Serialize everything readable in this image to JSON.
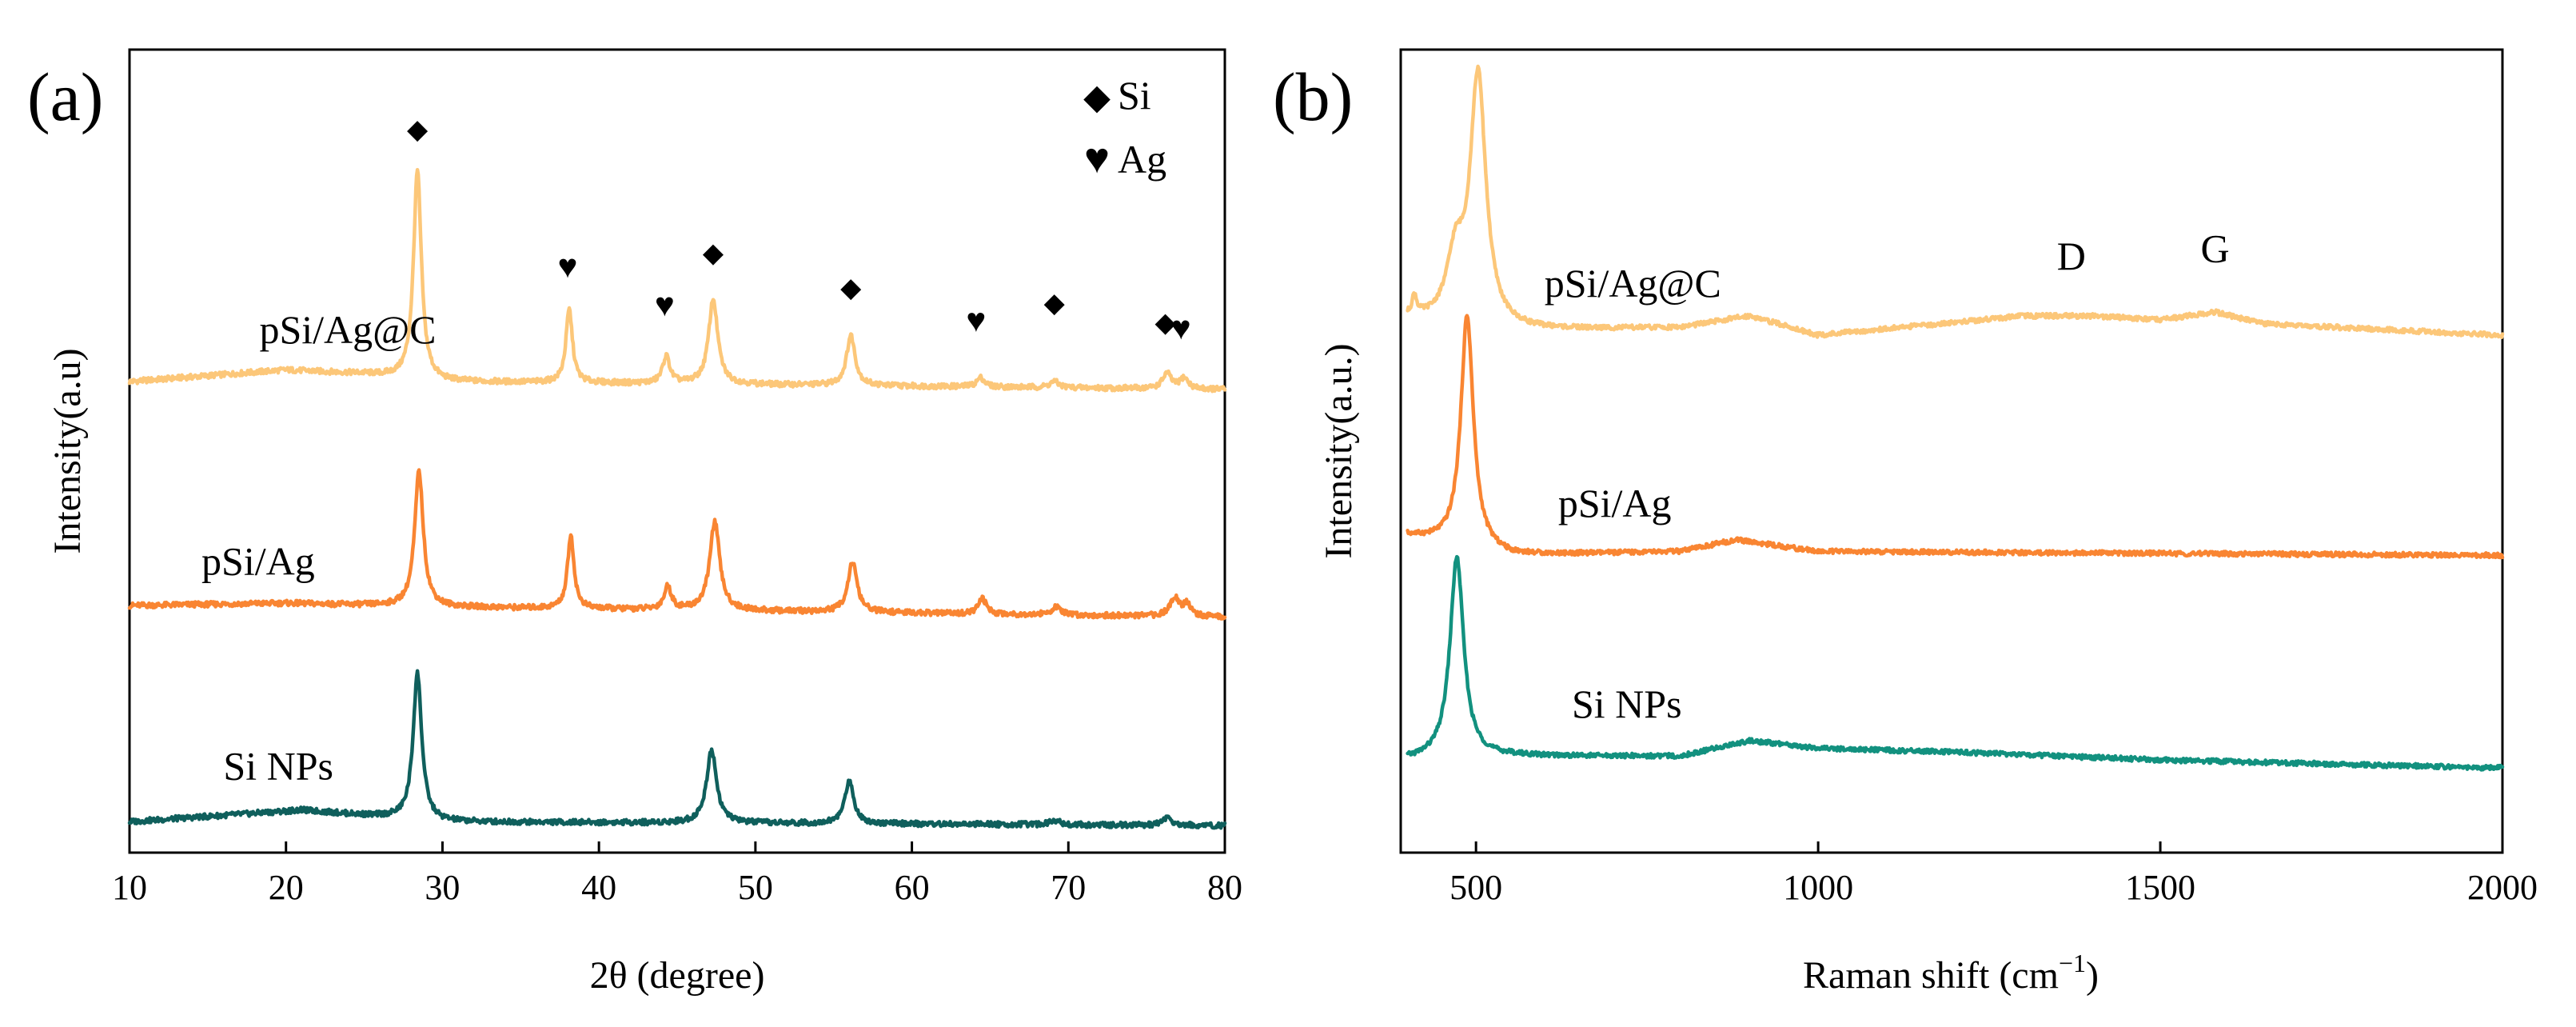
{
  "chart_data": [
    {
      "panel_label": "(a)",
      "type": "line",
      "title": "",
      "xlabel": "2θ (degree)",
      "ylabel": "Intensity(a.u)",
      "xlim": [
        10,
        80
      ],
      "ylim": [
        0,
        10.4
      ],
      "xticks": [
        10,
        20,
        30,
        40,
        50,
        60,
        70,
        80
      ],
      "xtick_labels": [
        "10",
        "20",
        "30",
        "40",
        "50",
        "60",
        "70",
        "80"
      ],
      "grid": false,
      "legend": {
        "placement": "top-right",
        "items": [
          {
            "symbol": "◆",
            "label": "Si",
            "color": "#000000"
          },
          {
            "symbol": "♥",
            "label": "Ag",
            "color": "#7a7a10"
          }
        ]
      },
      "series": [
        {
          "name": "pSi/Ag@C",
          "color": "#fcc779",
          "label_x": 18.3,
          "label_y": 6.6,
          "baseline": [
            [
              10,
              6.1
            ],
            [
              20,
              6.25
            ],
            [
              25,
              6.2
            ],
            [
              30,
              6.1
            ],
            [
              80,
              6.0
            ]
          ],
          "peaks": [
            [
              28.4,
              2.7,
              0.3
            ],
            [
              38.1,
              0.95,
              0.25
            ],
            [
              44.3,
              0.35,
              0.28
            ],
            [
              47.3,
              1.1,
              0.35
            ],
            [
              56.1,
              0.65,
              0.33
            ],
            [
              64.4,
              0.12,
              0.3
            ],
            [
              69.1,
              0.08,
              0.35
            ],
            [
              76.3,
              0.2,
              0.33
            ],
            [
              77.4,
              0.14,
              0.3
            ]
          ]
        },
        {
          "name": "pSi/Ag",
          "color": "#f98532",
          "label_x": 14.6,
          "label_y": 3.6,
          "baseline": [
            [
              10,
              3.2
            ],
            [
              20,
              3.23
            ],
            [
              30,
              3.18
            ],
            [
              80,
              3.05
            ]
          ],
          "peaks": [
            [
              28.5,
              1.75,
              0.33
            ],
            [
              38.2,
              0.95,
              0.25
            ],
            [
              44.4,
              0.3,
              0.28
            ],
            [
              47.4,
              1.15,
              0.38
            ],
            [
              56.2,
              0.65,
              0.35
            ],
            [
              64.5,
              0.2,
              0.3
            ],
            [
              69.2,
              0.1,
              0.35
            ],
            [
              76.8,
              0.25,
              0.35
            ],
            [
              77.6,
              0.15,
              0.3
            ]
          ]
        },
        {
          "name": "Si NPs",
          "color": "#0f5f5c",
          "label_x": 16.0,
          "label_y": 0.95,
          "baseline": [
            [
              10,
              0.4
            ],
            [
              21,
              0.55
            ],
            [
              30,
              0.4
            ],
            [
              80,
              0.35
            ]
          ],
          "peaks": [
            [
              28.4,
              1.9,
              0.33
            ],
            [
              47.2,
              0.95,
              0.38
            ],
            [
              56.0,
              0.55,
              0.35
            ],
            [
              69.1,
              0.06,
              0.4
            ],
            [
              76.3,
              0.1,
              0.35
            ]
          ]
        }
      ],
      "annotations": [
        {
          "symbol": "◆",
          "kind": "Si",
          "x": 28.4,
          "y": 9.25
        },
        {
          "symbol": "♥",
          "kind": "Ag",
          "x": 38.0,
          "y": 7.45
        },
        {
          "symbol": "♥",
          "kind": "Ag",
          "x": 44.2,
          "y": 6.95
        },
        {
          "symbol": "◆",
          "kind": "Si",
          "x": 47.3,
          "y": 7.65
        },
        {
          "symbol": "◆",
          "kind": "Si",
          "x": 56.1,
          "y": 7.2
        },
        {
          "symbol": "♥",
          "kind": "Ag",
          "x": 64.1,
          "y": 6.75
        },
        {
          "symbol": "◆",
          "kind": "Si",
          "x": 69.1,
          "y": 7.0
        },
        {
          "symbol": "◆",
          "kind": "Si",
          "x": 76.2,
          "y": 6.75
        },
        {
          "symbol": "♥",
          "kind": "Ag",
          "x": 77.2,
          "y": 6.65
        }
      ]
    },
    {
      "panel_label": "(b)",
      "type": "line",
      "title": "",
      "xlabel": "Raman shift (cm",
      "xlabel_sup": "−1",
      "xlabel_end": ")",
      "ylabel": "Intensity(a.u.)",
      "xlim": [
        390,
        2000
      ],
      "ylim": [
        0,
        10.4
      ],
      "xticks": [
        500,
        1000,
        1500,
        2000
      ],
      "xtick_labels": [
        "500",
        "1000",
        "1500",
        "2000"
      ],
      "grid": false,
      "series": [
        {
          "name": "pSi/Ag@C",
          "color": "#fcc779",
          "label_x": 600,
          "label_y": 7.2,
          "x_start": 400,
          "baseline": [
            [
              400,
              6.9
            ],
            [
              520,
              6.75
            ],
            [
              800,
              6.8
            ],
            [
              900,
              6.95
            ],
            [
              1000,
              6.7
            ],
            [
              1300,
              6.95
            ],
            [
              1400,
              6.95
            ],
            [
              1500,
              6.9
            ],
            [
              1580,
              7.0
            ],
            [
              1650,
              6.85
            ],
            [
              2000,
              6.7
            ]
          ],
          "peaks": [
            [
              503,
              3.25,
              14
            ],
            [
              470,
              0.8,
              15
            ],
            [
              410,
              0.25,
              4
            ]
          ]
        },
        {
          "name": "pSi/Ag",
          "color": "#f98532",
          "label_x": 620,
          "label_y": 4.35,
          "x_start": 400,
          "baseline": [
            [
              400,
              4.1
            ],
            [
              550,
              3.85
            ],
            [
              800,
              3.9
            ],
            [
              880,
              4.05
            ],
            [
              1000,
              3.9
            ],
            [
              2000,
              3.85
            ]
          ],
          "peaks": [
            [
              487,
              3.0,
              11
            ]
          ]
        },
        {
          "name": "Si NPs",
          "color": "#12917f",
          "label_x": 640,
          "label_y": 1.75,
          "x_start": 400,
          "baseline": [
            [
              400,
              1.2
            ],
            [
              550,
              1.25
            ],
            [
              800,
              1.25
            ],
            [
              900,
              1.45
            ],
            [
              1000,
              1.35
            ],
            [
              1200,
              1.3
            ],
            [
              1500,
              1.2
            ],
            [
              1980,
              1.1
            ]
          ],
          "peaks": [
            [
              472,
              2.6,
              12
            ]
          ]
        }
      ],
      "annotations": [
        {
          "text": "D",
          "x": 1370,
          "y": 7.55
        },
        {
          "text": "G",
          "x": 1580,
          "y": 7.65
        }
      ]
    }
  ]
}
